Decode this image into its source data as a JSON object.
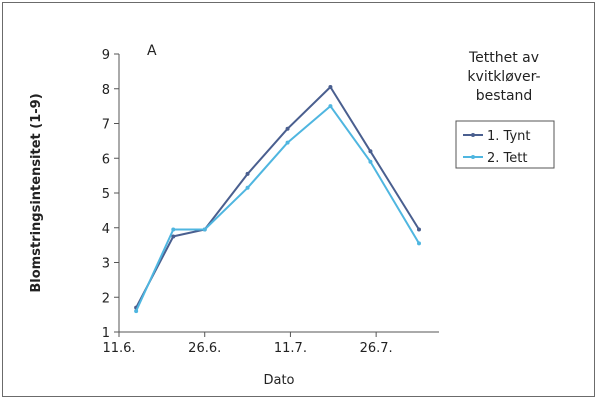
{
  "chart_data": {
    "type": "line",
    "panel_label": "A",
    "xlabel": "Dato",
    "ylabel": "Blomstringsintensitet (1-9)",
    "x_ticks": [
      {
        "label": "11.6.",
        "value": 0
      },
      {
        "label": "26.6.",
        "value": 15
      },
      {
        "label": "11.7.",
        "value": 30
      },
      {
        "label": "26.7.",
        "value": 45
      }
    ],
    "xlim": [
      0,
      56
    ],
    "ylim": [
      1,
      9
    ],
    "y_ticks": [
      1,
      2,
      3,
      4,
      5,
      6,
      7,
      8,
      9
    ],
    "grid": false,
    "legend": {
      "title_lines": [
        "Tetthet av",
        "kvitkløver-",
        "bestand"
      ],
      "position": "right"
    },
    "series": [
      {
        "name": "1. Tynt",
        "color": "#4a5f8f",
        "points": [
          {
            "x": 3,
            "y": 1.7
          },
          {
            "x": 9.5,
            "y": 3.75
          },
          {
            "x": 15,
            "y": 3.95
          },
          {
            "x": 22.5,
            "y": 5.55
          },
          {
            "x": 29.5,
            "y": 6.85
          },
          {
            "x": 37,
            "y": 8.05
          },
          {
            "x": 44,
            "y": 6.2
          },
          {
            "x": 52.5,
            "y": 3.95
          }
        ]
      },
      {
        "name": "2. Tett",
        "color": "#4fb6e0",
        "points": [
          {
            "x": 3,
            "y": 1.6
          },
          {
            "x": 9.5,
            "y": 3.95
          },
          {
            "x": 15,
            "y": 3.95
          },
          {
            "x": 22.5,
            "y": 5.15
          },
          {
            "x": 29.5,
            "y": 6.45
          },
          {
            "x": 37,
            "y": 7.5
          },
          {
            "x": 44,
            "y": 5.9
          },
          {
            "x": 52.5,
            "y": 3.55
          }
        ]
      }
    ]
  }
}
